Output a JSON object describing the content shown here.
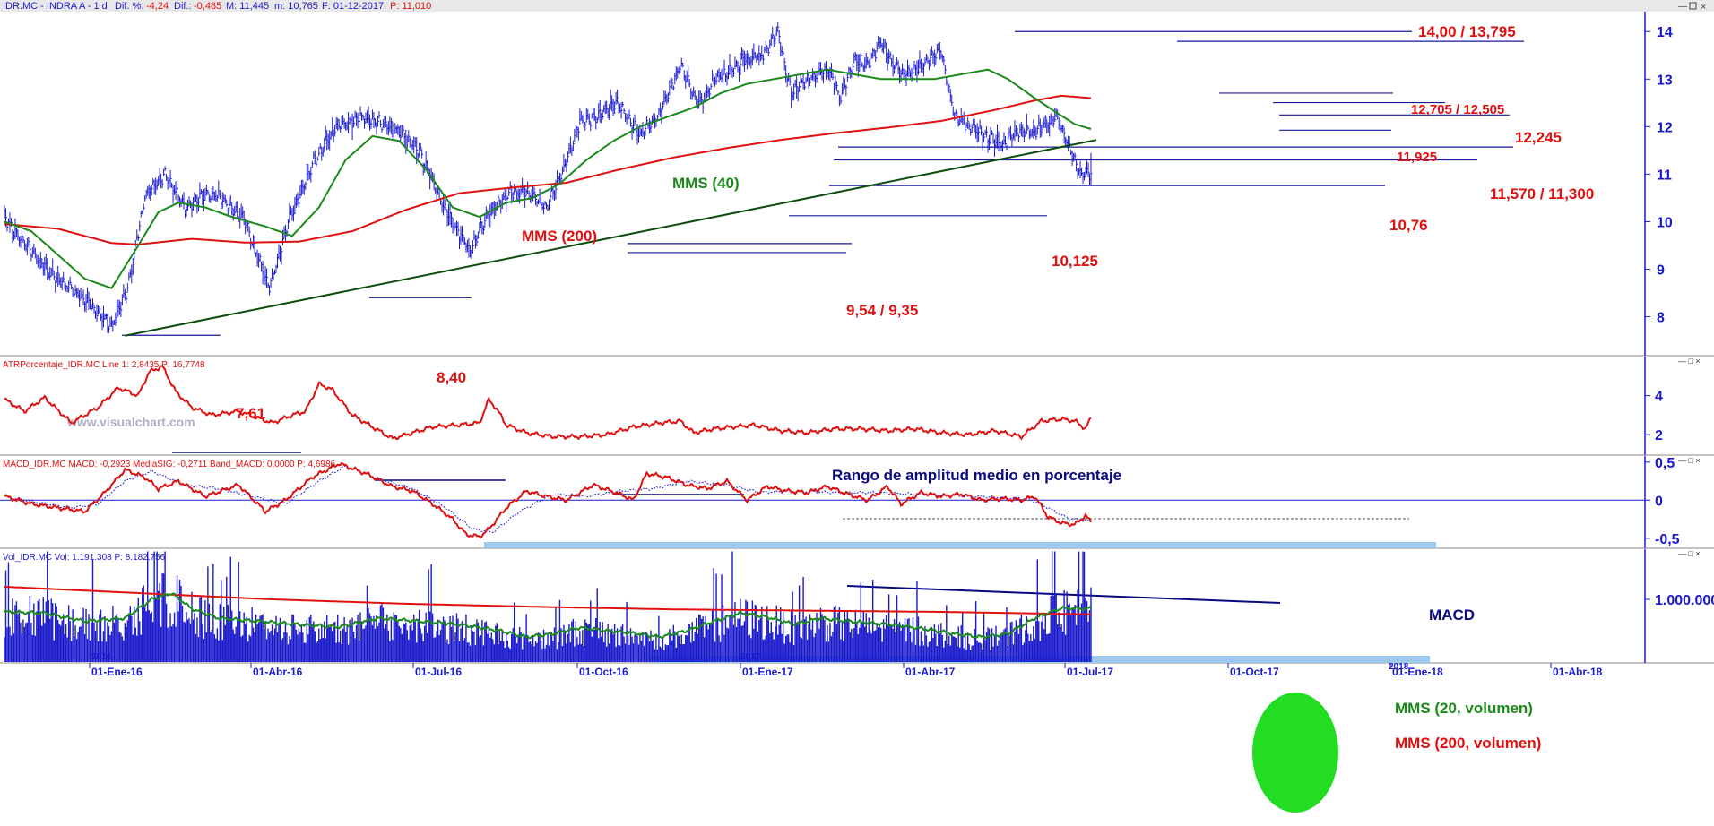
{
  "header": {
    "symbol": "IDR.MC - INDRA A - 1 d",
    "dif_pct_label": "Dif. %:",
    "dif_pct_value": "-4,24",
    "dif_label": "Dif.:",
    "dif_value": "-0,485",
    "max_label": "M: 11,445",
    "min_label": "m: 10,765",
    "date_label": "F: 01-12-2017",
    "price_label": "P: 11,010"
  },
  "watermark": "www.visualchart.com",
  "colors": {
    "price_bars": "#1a1acc",
    "mms40": "#1b8a1b",
    "mms200": "#e01010",
    "support_lines": "#1a1a99",
    "trendline": "#0b4d0b",
    "annotation_red": "#e01010",
    "annotation_blue": "#0a0a80",
    "highlight_band": "#9cc9f0",
    "volume_ellipse": "#22dd22"
  },
  "chart_data": [
    {
      "type": "line",
      "title": "IDR.MC - INDRA A - 1 d",
      "description": "Daily price bars with moving averages",
      "y_ticks": [
        "14",
        "13",
        "12",
        "11",
        "10",
        "9",
        "8"
      ],
      "ylim": [
        7.2,
        14.4
      ],
      "x_ticks": [
        "01-Ene-16",
        "01-Abr-16",
        "01-Jul-16",
        "01-Oct-16",
        "01-Ene-17",
        "01-Abr-17",
        "01-Jul-17",
        "01-Oct-17",
        "01-Ene-18",
        "01-Abr-18"
      ],
      "x_year_marks": [
        "2016",
        "2017",
        "2018"
      ],
      "price_anchors": {
        "x": [
          0,
          10,
          35,
          58,
          80,
          92,
          105,
          120,
          135,
          150,
          162,
          180,
          198,
          212,
          230,
          248,
          268,
          290,
          310,
          330,
          348,
          362,
          378,
          392,
          405,
          418,
          430,
          442,
          458,
          475,
          490,
          505,
          516,
          522,
          530,
          540,
          552,
          566,
          578,
          588,
          600,
          616,
          625,
          635,
          645,
          655,
          664,
          672,
          682,
          690,
          700,
          710,
          722,
          735,
          745,
          758,
          770,
          786,
          796,
          804,
          812
        ],
        "close": [
          10.1,
          9.7,
          8.9,
          8.4,
          7.8,
          8.6,
          10.5,
          11.0,
          10.3,
          10.6,
          10.5,
          10.0,
          8.6,
          10.0,
          11.2,
          12.0,
          12.2,
          12.0,
          11.5,
          10.2,
          9.4,
          10.2,
          10.6,
          10.6,
          10.3,
          11.1,
          12.1,
          12.2,
          12.5,
          11.8,
          12.3,
          13.3,
          12.6,
          12.5,
          13.0,
          13.1,
          13.4,
          13.5,
          14.0,
          12.7,
          13.0,
          13.2,
          12.6,
          13.4,
          13.3,
          13.8,
          13.3,
          13.1,
          13.2,
          13.4,
          13.6,
          12.2,
          12.0,
          11.8,
          11.6,
          11.9,
          11.9,
          12.2,
          11.6,
          11.0,
          11.01
        ]
      },
      "series": [
        {
          "name": "MMS (40)",
          "x": [
            0,
            20,
            40,
            60,
            80,
            100,
            115,
            130,
            150,
            170,
            195,
            215,
            235,
            255,
            275,
            295,
            315,
            335,
            355,
            375,
            395,
            415,
            435,
            455,
            475,
            495,
            515,
            535,
            555,
            575,
            595,
            615,
            635,
            655,
            675,
            695,
            715,
            735,
            750,
            760,
            770,
            786,
            800,
            812
          ],
          "values": [
            10.0,
            9.8,
            9.3,
            8.8,
            8.6,
            9.5,
            10.2,
            10.4,
            10.3,
            10.1,
            9.9,
            9.7,
            10.3,
            11.3,
            11.8,
            11.7,
            11.1,
            10.3,
            10.1,
            10.4,
            10.5,
            10.8,
            11.3,
            11.7,
            12.0,
            12.2,
            12.4,
            12.7,
            12.9,
            13.0,
            13.1,
            13.2,
            13.1,
            13.0,
            13.0,
            13.0,
            13.1,
            13.2,
            13.0,
            12.8,
            12.6,
            12.3,
            12.05,
            11.95
          ]
        },
        {
          "name": "MMS (200)",
          "x": [
            0,
            40,
            80,
            100,
            140,
            180,
            220,
            260,
            300,
            340,
            380,
            420,
            460,
            500,
            540,
            580,
            620,
            660,
            700,
            740,
            770,
            790,
            812
          ],
          "values": [
            9.95,
            9.85,
            9.55,
            9.52,
            9.64,
            9.56,
            9.58,
            9.8,
            10.25,
            10.6,
            10.72,
            10.82,
            11.1,
            11.35,
            11.55,
            11.72,
            11.86,
            11.98,
            12.12,
            12.35,
            12.55,
            12.65,
            12.6
          ]
        }
      ],
      "trendline": {
        "x": [
          90,
          812
        ],
        "values": [
          7.6,
          11.72
        ]
      },
      "levels": [
        {
          "label": "14,00 / 13,795",
          "values": [
            14.0,
            13.795
          ]
        },
        {
          "label": "12,705 / 12,505",
          "values": [
            12.705,
            12.505
          ]
        },
        {
          "label": "12,245",
          "values": [
            12.245
          ]
        },
        {
          "label": "11,925",
          "values": [
            11.925
          ]
        },
        {
          "label": "11,570 / 11,300",
          "values": [
            11.57,
            11.3
          ]
        },
        {
          "label": "10,76",
          "values": [
            10.76
          ]
        },
        {
          "label": "10,125",
          "values": [
            10.125
          ]
        },
        {
          "label": "9,54 / 9,35",
          "values": [
            9.54,
            9.35
          ]
        },
        {
          "label": "8,40",
          "values": [
            8.4
          ]
        },
        {
          "label": "7,61",
          "values": [
            7.61
          ]
        }
      ],
      "annotations": [
        "MMS (40)",
        "MMS (200)"
      ]
    },
    {
      "type": "line",
      "title": "ATRPorcentaje_IDR.MC",
      "legend": "ATRPorcentaje_IDR.MC  Line 1: 2,8435  P: 16,7748",
      "annotation": "Rango de amplitud medio en porcentaje",
      "y_ticks": [
        "4",
        "2"
      ],
      "ylim": [
        1.0,
        6.0
      ],
      "series": [
        {
          "name": "Line 1",
          "x": [
            0,
            15,
            30,
            50,
            70,
            85,
            100,
            108,
            118,
            128,
            140,
            155,
            175,
            200,
            215,
            225,
            235,
            245,
            260,
            275,
            290,
            300,
            320,
            340,
            355,
            362,
            368,
            375,
            390,
            410,
            430,
            450,
            470,
            490,
            505,
            515,
            530,
            545,
            560,
            580,
            600,
            620,
            640,
            660,
            680,
            700,
            720,
            740,
            760,
            775,
            790,
            800,
            808,
            812
          ],
          "values": [
            3.8,
            3.2,
            3.9,
            2.6,
            3.4,
            4.4,
            4.0,
            5.2,
            5.5,
            4.2,
            3.4,
            3.0,
            3.2,
            2.6,
            3.0,
            3.2,
            4.6,
            4.3,
            3.0,
            2.4,
            1.8,
            2.0,
            2.4,
            2.5,
            2.6,
            3.8,
            3.3,
            2.5,
            2.1,
            1.9,
            1.9,
            2.0,
            2.4,
            2.6,
            2.7,
            2.1,
            2.3,
            2.4,
            2.5,
            2.2,
            2.1,
            2.3,
            2.3,
            2.2,
            2.3,
            2.1,
            2.0,
            2.2,
            1.9,
            2.7,
            2.8,
            2.7,
            2.3,
            2.85
          ]
        }
      ]
    },
    {
      "type": "line",
      "title": "MACD_IDR.MC",
      "legend": "MACD_IDR.MC  MACD: -0,2923  MediaSIG: -0,2711  Band_MACD: 0,0000  P: 4,6986",
      "annotation": "MACD",
      "y_ticks": [
        "0,5",
        "0",
        "-0,5"
      ],
      "ylim": [
        -0.62,
        0.58
      ],
      "series": [
        {
          "name": "MACD",
          "x": [
            0,
            20,
            40,
            60,
            75,
            90,
            105,
            115,
            130,
            150,
            175,
            195,
            210,
            230,
            250,
            270,
            290,
            305,
            320,
            335,
            345,
            355,
            362,
            375,
            390,
            405,
            420,
            440,
            460,
            470,
            480,
            495,
            510,
            525,
            540,
            555,
            570,
            585,
            600,
            615,
            630,
            645,
            660,
            670,
            685,
            700,
            715,
            730,
            745,
            760,
            770,
            780,
            790,
            800,
            808,
            812
          ],
          "values": [
            0.05,
            -0.05,
            -0.1,
            -0.15,
            0.1,
            0.4,
            0.3,
            0.15,
            0.25,
            0.05,
            0.2,
            -0.15,
            0.0,
            0.3,
            0.48,
            0.35,
            0.18,
            0.12,
            -0.05,
            -0.25,
            -0.45,
            -0.48,
            -0.38,
            -0.1,
            0.12,
            0.05,
            0.0,
            0.2,
            0.08,
            0.0,
            0.35,
            0.3,
            0.2,
            0.15,
            0.25,
            0.0,
            0.18,
            0.12,
            0.1,
            0.18,
            0.08,
            0.0,
            0.18,
            -0.05,
            0.1,
            0.05,
            0.08,
            0.0,
            0.02,
            0.0,
            0.05,
            -0.22,
            -0.3,
            -0.32,
            -0.2,
            -0.29
          ]
        },
        {
          "name": "MediaSIG",
          "x": [
            0,
            25,
            50,
            70,
            90,
            110,
            135,
            160,
            185,
            210,
            235,
            255,
            280,
            305,
            330,
            350,
            365,
            385,
            410,
            435,
            460,
            485,
            510,
            540,
            565,
            590,
            620,
            650,
            680,
            710,
            740,
            765,
            780,
            795,
            812
          ],
          "values": [
            0.05,
            -0.03,
            -0.1,
            -0.05,
            0.25,
            0.38,
            0.2,
            0.15,
            0.05,
            -0.05,
            0.25,
            0.45,
            0.28,
            0.15,
            -0.1,
            -0.38,
            -0.42,
            -0.15,
            0.08,
            0.05,
            0.12,
            0.15,
            0.25,
            0.2,
            0.1,
            0.12,
            0.1,
            0.1,
            0.08,
            0.06,
            0.04,
            0.02,
            -0.1,
            -0.24,
            -0.27
          ]
        }
      ]
    },
    {
      "type": "bar",
      "title": "Vol_IDR.MC",
      "legend": "Vol_IDR.MC  Vol: 1.191.308  P: 8.182.756",
      "annotations": [
        "MMS (20, volumen)",
        "MMS (200, volumen)"
      ],
      "y_ticks": [
        "1.000.000"
      ],
      "ylim": [
        0,
        1800000
      ],
      "series": [
        {
          "name": "MMS (20, volumen)",
          "x": [
            0,
            30,
            60,
            90,
            110,
            125,
            140,
            160,
            190,
            220,
            250,
            280,
            310,
            340,
            370,
            390,
            410,
            430,
            450,
            470,
            490,
            510,
            530,
            550,
            570,
            590,
            610,
            630,
            650,
            670,
            690,
            710,
            730,
            750,
            770,
            790,
            812
          ],
          "values": [
            800000,
            780000,
            650000,
            700000,
            1000000,
            1100000,
            850000,
            700000,
            650000,
            600000,
            560000,
            700000,
            650000,
            600000,
            500000,
            400000,
            450000,
            550000,
            500000,
            460000,
            400000,
            500000,
            650000,
            780000,
            720000,
            600000,
            700000,
            650000,
            620000,
            580000,
            520000,
            450000,
            400000,
            450000,
            700000,
            860000,
            850000
          ]
        },
        {
          "name": "MMS (200, volumen)",
          "x": [
            0,
            100,
            200,
            300,
            400,
            500,
            600,
            700,
            812
          ],
          "values": [
            1200000,
            1100000,
            1000000,
            930000,
            880000,
            840000,
            820000,
            800000,
            760000
          ]
        }
      ]
    }
  ]
}
